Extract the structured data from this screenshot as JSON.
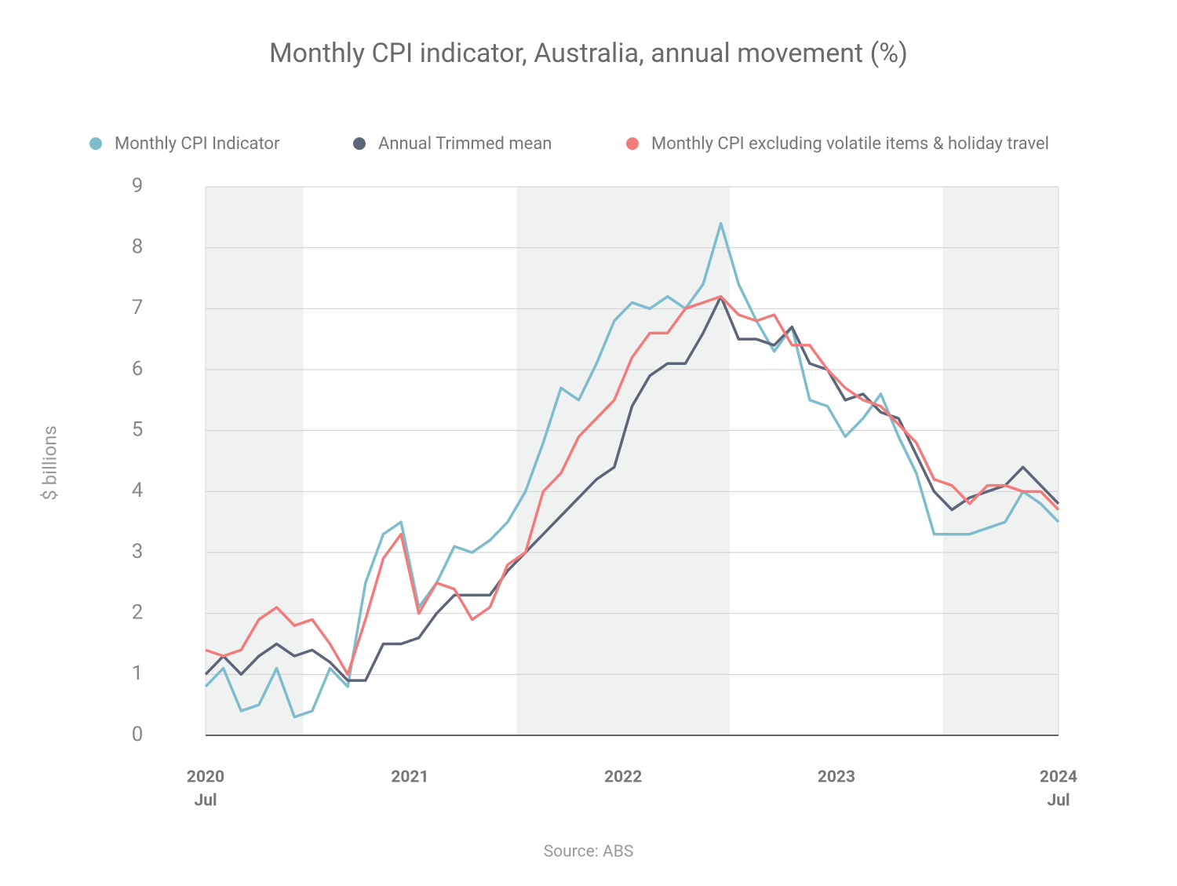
{
  "chart_data": {
    "type": "line",
    "title": "Monthly CPI indicator, Australia, annual movement (%)",
    "y_label": "$ billions",
    "source": "Source: ABS",
    "categories": [
      "2020",
      null,
      null,
      null,
      null,
      null,
      null,
      null,
      null,
      null,
      null,
      null,
      "2021",
      null,
      null,
      null,
      null,
      null,
      null,
      null,
      null,
      null,
      null,
      null,
      "2022",
      null,
      null,
      null,
      null,
      null,
      null,
      null,
      null,
      null,
      null,
      null,
      "2023",
      null,
      null,
      null,
      null,
      null,
      null,
      null,
      null,
      null,
      null,
      null,
      "2024"
    ],
    "x_sublabels": [
      "Jul",
      null,
      null,
      null,
      null,
      null,
      null,
      null,
      null,
      null,
      null,
      null,
      null,
      null,
      null,
      null,
      null,
      null,
      null,
      null,
      null,
      null,
      null,
      null,
      null,
      null,
      null,
      null,
      null,
      null,
      null,
      null,
      null,
      null,
      null,
      null,
      null,
      null,
      null,
      null,
      null,
      null,
      null,
      null,
      null,
      null,
      null,
      null,
      "Jul"
    ],
    "series": [
      {
        "name": "Monthly CPI Indicator",
        "color": "#7fbccc",
        "values": [
          0.8,
          1.1,
          0.4,
          0.5,
          1.1,
          0.3,
          0.4,
          1.1,
          0.8,
          2.5,
          3.3,
          3.5,
          2.1,
          2.5,
          3.1,
          3.0,
          3.2,
          3.5,
          4.0,
          4.8,
          5.7,
          5.5,
          6.1,
          6.8,
          7.1,
          7.0,
          7.2,
          7.0,
          7.4,
          8.4,
          7.4,
          6.8,
          6.3,
          6.7,
          5.5,
          5.4,
          4.9,
          5.2,
          5.6,
          4.9,
          4.3,
          3.3,
          3.3,
          3.3,
          3.4,
          3.5,
          4.0,
          3.8,
          3.5
        ]
      },
      {
        "name": "Annual Trimmed mean",
        "color": "#5d6679",
        "values": [
          1.0,
          1.3,
          1.0,
          1.3,
          1.5,
          1.3,
          1.4,
          1.2,
          0.9,
          0.9,
          1.5,
          1.5,
          1.6,
          2.0,
          2.3,
          2.3,
          2.3,
          2.7,
          3.0,
          3.3,
          3.6,
          3.9,
          4.2,
          4.4,
          5.4,
          5.9,
          6.1,
          6.1,
          6.6,
          7.2,
          6.5,
          6.5,
          6.4,
          6.7,
          6.1,
          6.0,
          5.5,
          5.6,
          5.3,
          5.2,
          4.6,
          4.0,
          3.7,
          3.9,
          4.0,
          4.1,
          4.4,
          4.1,
          3.8
        ]
      },
      {
        "name": "Monthly CPI excluding volatile items & holiday travel",
        "color": "#f27b7b",
        "values": [
          1.4,
          1.3,
          1.4,
          1.9,
          2.1,
          1.8,
          1.9,
          1.5,
          1.0,
          1.9,
          2.9,
          3.3,
          2.0,
          2.5,
          2.4,
          1.9,
          2.1,
          2.8,
          3.0,
          4.0,
          4.3,
          4.9,
          5.2,
          5.5,
          6.2,
          6.6,
          6.6,
          7.0,
          7.1,
          7.2,
          6.9,
          6.8,
          6.9,
          6.4,
          6.4,
          6.0,
          5.7,
          5.5,
          5.4,
          5.1,
          4.8,
          4.2,
          4.1,
          3.8,
          4.1,
          4.1,
          4.0,
          4.0,
          3.7
        ]
      }
    ],
    "ylim": [
      0,
      9
    ],
    "yticks": [
      0,
      1,
      2,
      3,
      4,
      5,
      6,
      7,
      8,
      9
    ],
    "grid": true,
    "legend": "top"
  }
}
